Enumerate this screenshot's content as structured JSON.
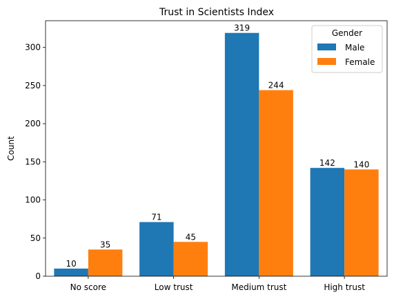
{
  "chart_data": {
    "type": "bar",
    "title": "Trust in Scientists Index",
    "xlabel": "",
    "ylabel": "Count",
    "categories": [
      "No score",
      "Low trust",
      "Medium trust",
      "High trust"
    ],
    "series": [
      {
        "name": "Male",
        "values": [
          10,
          71,
          319,
          142
        ],
        "color": "#1f77b4"
      },
      {
        "name": "Female",
        "values": [
          35,
          45,
          244,
          140
        ],
        "color": "#ff7f0e"
      }
    ],
    "ylim": [
      0,
      335
    ],
    "yticks": [
      0,
      50,
      100,
      150,
      200,
      250,
      300
    ],
    "grid": false,
    "legend": {
      "title": "Gender",
      "placement": "top-right"
    }
  }
}
